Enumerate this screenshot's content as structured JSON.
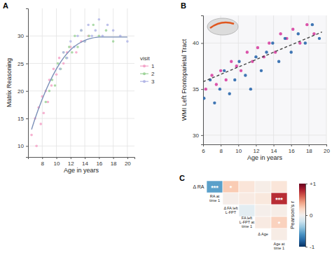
{
  "chart_data": [
    {
      "type": "scatter",
      "title": "A",
      "x_label": "Age in years",
      "y_label": "Matrix Reasoning",
      "xlim": [
        6,
        21
      ],
      "ylim": [
        8,
        35
      ],
      "xticks": [
        8,
        10,
        12,
        14,
        16,
        18,
        20
      ],
      "yticks": [
        10,
        15,
        20,
        25,
        30
      ],
      "grid": true,
      "legend": "right",
      "legend_title": "visit",
      "series": [
        {
          "name": "1",
          "color": "#f4a3c8",
          "marker": "circle",
          "x": [
            6.5,
            7,
            7.2,
            7.5,
            7.8,
            8,
            8.2,
            8.5,
            8.8,
            9,
            9.3,
            9.6,
            10,
            10.4,
            11,
            11.5,
            12,
            12.8,
            13.5,
            14.5
          ],
          "values": [
            12,
            15,
            10,
            17,
            14,
            19,
            16,
            20,
            18,
            22,
            21,
            24,
            23,
            26,
            25,
            27,
            28,
            27,
            29,
            30
          ]
        },
        {
          "name": "2",
          "color": "#9fd49a",
          "marker": "circle",
          "x": [
            8.5,
            9,
            9.4,
            9.8,
            10.2,
            10.6,
            11,
            11.4,
            11.8,
            12.2,
            12.6,
            13,
            13.5,
            14,
            14.6,
            15.2,
            16,
            17,
            18
          ],
          "values": [
            18,
            20,
            22,
            21,
            25,
            24,
            27,
            26,
            28,
            27,
            30,
            28,
            31,
            29,
            30,
            32,
            30,
            31,
            29
          ]
        },
        {
          "name": "3",
          "color": "#b2b6e6",
          "marker": "circle",
          "x": [
            10.5,
            11,
            11.5,
            12,
            12.5,
            13,
            13.5,
            14,
            14.5,
            15,
            15.5,
            16,
            16.5,
            17.2,
            18,
            19,
            20
          ],
          "values": [
            24,
            27,
            26,
            29,
            28,
            30,
            31,
            29,
            32,
            30,
            31,
            33,
            30,
            32,
            31,
            30,
            29
          ]
        },
        {
          "type": "line",
          "color": "#7a8fb8",
          "line_style": "solid",
          "x": [
            6.5,
            7,
            8,
            9,
            10,
            11,
            12,
            13,
            14,
            15,
            16,
            17,
            18,
            19,
            20
          ],
          "values": [
            13,
            15,
            18.5,
            21.5,
            24,
            26,
            27.5,
            28.5,
            29.2,
            29.6,
            29.8,
            29.8,
            29.8,
            29.8,
            29.8
          ]
        }
      ]
    },
    {
      "type": "scatter",
      "title": "B",
      "x_label": "Age in years",
      "y_label": "WMI Left Frontoparietal Tract",
      "xlim": [
        6,
        20
      ],
      "ylim": [
        29,
        43
      ],
      "xticks": [
        6,
        8,
        10,
        12,
        14,
        16,
        18,
        20
      ],
      "yticks": [
        30,
        35,
        40
      ],
      "grid": true,
      "series": [
        {
          "color": "#d6379c",
          "marker": "circle",
          "x": [
            6.3,
            7,
            7.5,
            8,
            8.6,
            9.2,
            9.8,
            10.3,
            11,
            11.6,
            12.2,
            12.9,
            13.5,
            14.2,
            14.8,
            15.5,
            16.2,
            17,
            17.8,
            18.6
          ],
          "values": [
            35,
            36.5,
            35.5,
            37,
            36,
            38,
            37.5,
            37,
            39,
            38,
            39.5,
            38.5,
            40,
            39,
            41,
            40.5,
            41.5,
            40,
            42,
            41
          ]
        },
        {
          "color": "#1e5fa8",
          "marker": "circle",
          "x": [
            6.1,
            6.8,
            7.3,
            7.9,
            8.4,
            9,
            9.6,
            10.1,
            10.8,
            11.4,
            12,
            12.6,
            13.2,
            13.9,
            14.6,
            15.3,
            16,
            16.8,
            17.6,
            18.4,
            19.2
          ],
          "values": [
            34,
            36,
            33.5,
            35,
            37,
            34.5,
            36,
            38,
            36.5,
            35,
            38.5,
            37,
            39,
            40,
            38,
            40.5,
            39,
            41,
            40,
            42,
            40.5
          ]
        },
        {
          "type": "line",
          "color": "#444444",
          "line_style": "dashed",
          "x": [
            6,
            8,
            10,
            12,
            14,
            16,
            18,
            19.5
          ],
          "values": [
            35.8,
            36.6,
            37.4,
            38.2,
            39,
            39.8,
            40.6,
            41.2
          ]
        }
      ]
    },
    {
      "type": "heatmap",
      "title": "C",
      "variables": [
        "Δ RA",
        "RA at time 1",
        "Δ FA left L-FPT",
        "FA left L-FPT at time 1",
        "Δ Age",
        "Age at time 1"
      ],
      "matrix": [
        [
          null,
          -0.55,
          0.25,
          0.12,
          0.05,
          0.12
        ],
        [
          null,
          null,
          0.04,
          0.08,
          0.1,
          0.75
        ],
        [
          null,
          null,
          null,
          -0.1,
          0.03,
          0.05
        ],
        [
          null,
          null,
          null,
          null,
          0.08,
          0.22
        ],
        [
          null,
          null,
          null,
          null,
          null,
          0.06
        ],
        [
          null,
          null,
          null,
          null,
          null,
          null
        ]
      ],
      "significance": [
        [
          null,
          "***",
          "*",
          null,
          null,
          null
        ],
        [
          null,
          null,
          null,
          null,
          null,
          "***"
        ],
        [
          null,
          null,
          null,
          null,
          null,
          null
        ],
        [
          null,
          null,
          null,
          null,
          null,
          "*"
        ],
        [
          null,
          null,
          null,
          null,
          null,
          null
        ],
        [
          null,
          null,
          null,
          null,
          null,
          null
        ]
      ],
      "colorbar_range": [
        -1,
        1
      ],
      "colorbar_ticks": [
        -1,
        0,
        {
          "value": 1,
          "label": "+1"
        }
      ],
      "colorbar_label": "Pearson's r"
    }
  ]
}
